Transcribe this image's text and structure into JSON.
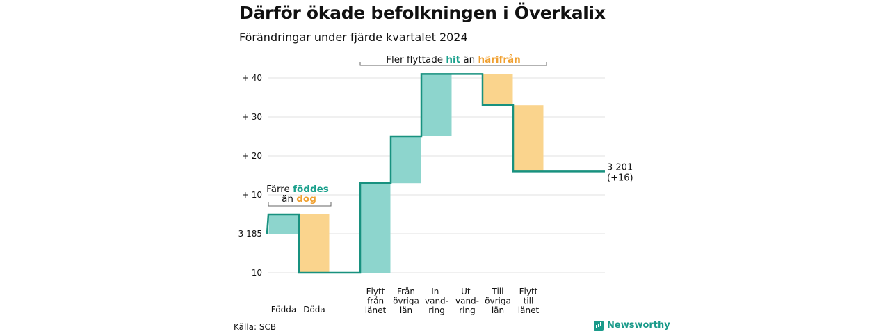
{
  "title": "Därför ökade befolkningen i Överkalix",
  "subtitle": "Förändringar under fjärde kvartalet 2024",
  "source": "Källa: SCB",
  "brand": "Newsworthy",
  "colors": {
    "increase": "#8dd5cd",
    "decrease": "#fad48d",
    "line": "#18917f",
    "teal_text": "#1aa08c",
    "orange_text": "#f0a030"
  },
  "annotations": {
    "left": {
      "line1_prefix": "Färre ",
      "line1_highlight": "föddes",
      "line2_prefix": "än ",
      "line2_highlight": "dog"
    },
    "top": {
      "prefix": "Fler flyttade ",
      "highlight1": "hit",
      "middle": " än ",
      "highlight2": "härifrån"
    }
  },
  "end_label": {
    "line1": "3 201",
    "line2": "(+16)"
  },
  "chart_data": {
    "type": "waterfall",
    "start_value": 3185,
    "end_value": 3201,
    "y_tick_labels": [
      {
        "value": -10,
        "label": "– 10"
      },
      {
        "value": 0,
        "label": "3 185"
      },
      {
        "value": 10,
        "label": "+ 10"
      },
      {
        "value": 20,
        "label": "+ 20"
      },
      {
        "value": 30,
        "label": "+ 30"
      },
      {
        "value": 40,
        "label": "+ 40"
      }
    ],
    "ylim": [
      -10,
      45
    ],
    "grid": true,
    "steps": [
      {
        "label": [
          "Födda"
        ],
        "change": 5
      },
      {
        "label": [
          "Döda"
        ],
        "change": -15
      },
      {
        "label": [],
        "change": 0
      },
      {
        "label": [
          "Flytt",
          "från",
          "länet"
        ],
        "change": 23
      },
      {
        "label": [
          "Från",
          "övriga",
          "län"
        ],
        "change": 12
      },
      {
        "label": [
          "In-",
          "vand-",
          "ring"
        ],
        "change": 16
      },
      {
        "label": [
          "Ut-",
          "vand-",
          "ring"
        ],
        "change": 0
      },
      {
        "label": [
          "Till",
          "övriga",
          "län"
        ],
        "change": -8
      },
      {
        "label": [
          "Flytt",
          "till",
          "länet"
        ],
        "change": -17
      }
    ]
  }
}
